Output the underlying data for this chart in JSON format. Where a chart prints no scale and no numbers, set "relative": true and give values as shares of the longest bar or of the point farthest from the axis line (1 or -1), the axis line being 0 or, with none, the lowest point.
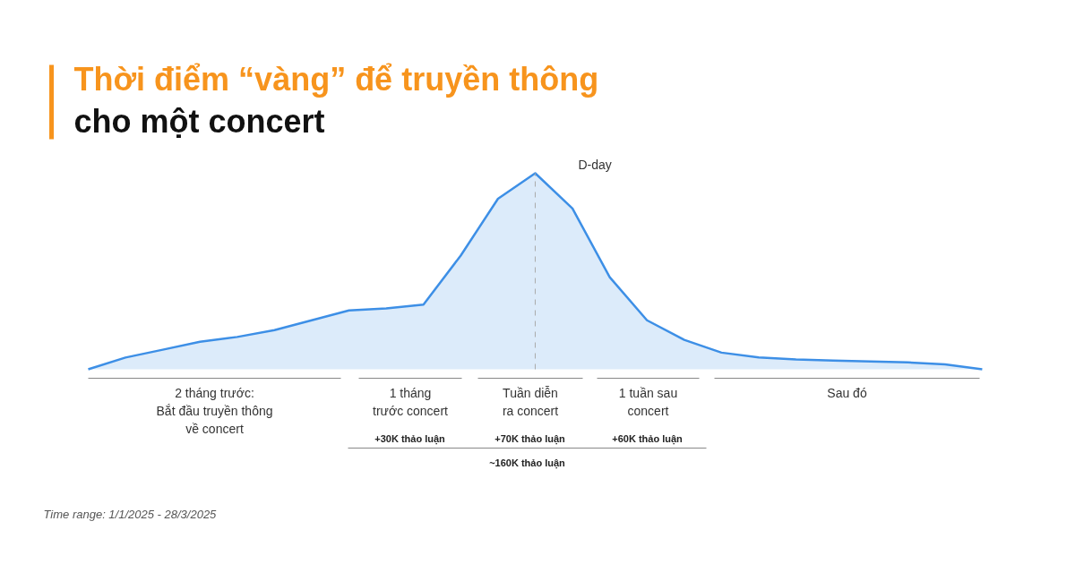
{
  "chart_data": {
    "type": "area",
    "relative": true,
    "title": "Thời điểm “vàng” để truyền thông\ncho một concert",
    "categories": [
      null,
      null,
      null,
      null,
      null,
      null,
      null,
      null,
      null,
      null,
      null,
      null,
      null,
      null,
      null,
      null,
      null,
      null,
      null,
      null,
      null,
      null,
      null,
      null,
      null
    ],
    "series": [
      {
        "color": "#3d8fe6",
        "values": [
          0,
          0.06,
          0.1,
          0.14,
          0.165,
          0.2,
          0.25,
          0.3,
          0.31,
          0.33,
          0.58,
          0.87,
          1,
          0.82,
          0.47,
          0.25,
          0.15,
          0.085,
          0.06,
          0.05,
          0.045,
          0.04,
          0.035,
          0.025,
          0
        ]
      }
    ],
    "annotations": [
      "2 tháng trước:\nBắt đầu truyền thông\nvề concert",
      "1 tháng\ntrước concert",
      "Tuần diễn\nra concert",
      "1 tuần sau\nconcert",
      "Sau đó",
      "+30K thảo luận",
      "+70K thảo luận",
      "+60K thảo luận",
      "~160K thảo luận",
      "Time range: 1/1/2025 - 28/3/2025",
      "D-day"
    ],
    "grid": false
  }
}
